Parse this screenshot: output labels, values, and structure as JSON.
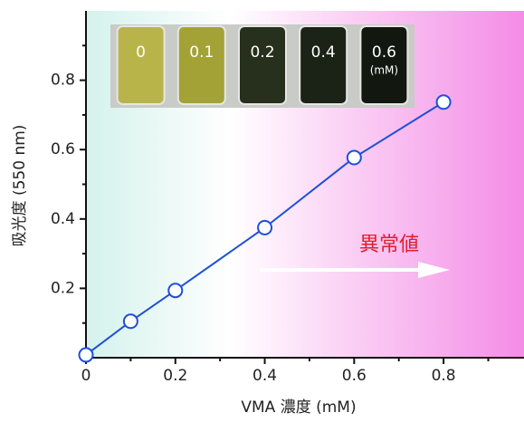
{
  "chart_data": {
    "type": "line",
    "x_label": "VMA 濃度 (mM)",
    "y_label": "吸光度 (550 nm)",
    "x": [
      0,
      0.1,
      0.2,
      0.4,
      0.6,
      0.8
    ],
    "values": [
      0.008,
      0.105,
      0.194,
      0.375,
      0.577,
      0.737
    ],
    "color": "#1f4fd8",
    "xlim": [
      0,
      0.98
    ],
    "ylim": [
      0,
      1.0
    ],
    "xticks": [
      0,
      0.2,
      0.4,
      0.6,
      0.8
    ],
    "yticks": [
      0.2,
      0.4,
      0.6,
      0.8
    ],
    "xminorticks": [
      0.1,
      0.3,
      0.5,
      0.7,
      0.9
    ],
    "yminorticks": [
      0.1,
      0.3,
      0.5,
      0.7,
      0.9
    ],
    "annotation": "異常値",
    "annotation_color": "#e0202e",
    "inset": {
      "labels": [
        "0",
        "0.1",
        "0.2",
        "0.4",
        "0.6"
      ],
      "unit": "(mM)",
      "tube_colors": [
        "#b9b44a",
        "#a3a236",
        "#27301c",
        "#1b2216",
        "#121810"
      ]
    }
  }
}
